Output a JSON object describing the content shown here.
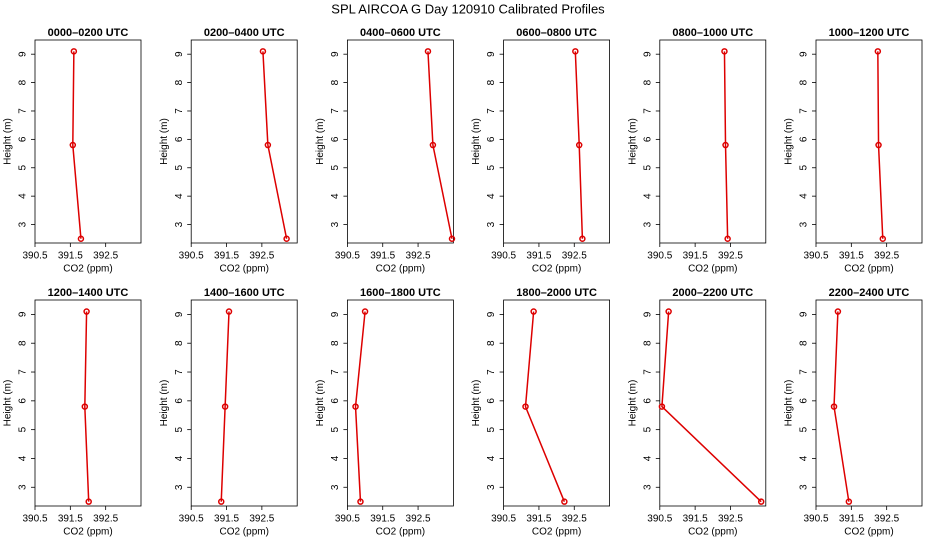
{
  "title": "SPL AIRCOA G  Day 120910  Calibrated Profiles",
  "chart_data": [
    {
      "type": "line",
      "title": "0000–0200 UTC",
      "xlabel": "CO2 (ppm)",
      "ylabel": "Height (m)",
      "color": "#dd0000",
      "x": [
        391.6,
        391.57,
        391.8
      ],
      "values": [
        9.1,
        5.8,
        2.5
      ],
      "xlim": [
        390.5,
        393.5
      ],
      "xticks": [
        390.5,
        391.5,
        392.5
      ],
      "ylim": [
        2.35,
        9.5
      ],
      "yticks": [
        3,
        4,
        5,
        6,
        7,
        8,
        9
      ]
    },
    {
      "type": "line",
      "title": "0200–0400 UTC",
      "xlabel": "CO2 (ppm)",
      "ylabel": "Height (m)",
      "color": "#dd0000",
      "x": [
        392.53,
        392.67,
        393.2
      ],
      "values": [
        9.1,
        5.8,
        2.5
      ],
      "xlim": [
        390.5,
        393.5
      ],
      "xticks": [
        390.5,
        391.5,
        392.5
      ],
      "ylim": [
        2.35,
        9.5
      ],
      "yticks": [
        3,
        4,
        5,
        6,
        7,
        8,
        9
      ]
    },
    {
      "type": "line",
      "title": "0400–0600 UTC",
      "xlabel": "CO2 (ppm)",
      "ylabel": "Height (m)",
      "color": "#dd0000",
      "x": [
        392.78,
        392.92,
        393.46
      ],
      "values": [
        9.1,
        5.8,
        2.5
      ],
      "xlim": [
        390.5,
        393.5
      ],
      "xticks": [
        390.5,
        391.5,
        392.5
      ],
      "ylim": [
        2.35,
        9.5
      ],
      "yticks": [
        3,
        4,
        5,
        6,
        7,
        8,
        9
      ]
    },
    {
      "type": "line",
      "title": "0600–0800 UTC",
      "xlabel": "CO2 (ppm)",
      "ylabel": "Height (m)",
      "color": "#dd0000",
      "x": [
        392.53,
        392.64,
        392.73
      ],
      "values": [
        9.1,
        5.8,
        2.5
      ],
      "xlim": [
        390.5,
        393.5
      ],
      "xticks": [
        390.5,
        391.5,
        392.5
      ],
      "ylim": [
        2.35,
        9.5
      ],
      "yticks": [
        3,
        4,
        5,
        6,
        7,
        8,
        9
      ]
    },
    {
      "type": "line",
      "title": "0800–1000 UTC",
      "xlabel": "CO2 (ppm)",
      "ylabel": "Height (m)",
      "color": "#dd0000",
      "x": [
        392.33,
        392.36,
        392.42
      ],
      "values": [
        9.1,
        5.8,
        2.5
      ],
      "xlim": [
        390.5,
        393.5
      ],
      "xticks": [
        390.5,
        391.5,
        392.5
      ],
      "ylim": [
        2.35,
        9.5
      ],
      "yticks": [
        3,
        4,
        5,
        6,
        7,
        8,
        9
      ]
    },
    {
      "type": "line",
      "title": "1000–1200 UTC",
      "xlabel": "CO2 (ppm)",
      "ylabel": "Height (m)",
      "color": "#dd0000",
      "x": [
        392.25,
        392.27,
        392.39
      ],
      "values": [
        9.1,
        5.8,
        2.5
      ],
      "xlim": [
        390.5,
        393.5
      ],
      "xticks": [
        390.5,
        391.5,
        392.5
      ],
      "ylim": [
        2.35,
        9.5
      ],
      "yticks": [
        3,
        4,
        5,
        6,
        7,
        8,
        9
      ]
    },
    {
      "type": "line",
      "title": "1200–1400 UTC",
      "xlabel": "CO2 (ppm)",
      "ylabel": "Height (m)",
      "color": "#dd0000",
      "x": [
        391.96,
        391.91,
        392.02
      ],
      "values": [
        9.1,
        5.8,
        2.5
      ],
      "xlim": [
        390.5,
        393.5
      ],
      "xticks": [
        390.5,
        391.5,
        392.5
      ],
      "ylim": [
        2.35,
        9.5
      ],
      "yticks": [
        3,
        4,
        5,
        6,
        7,
        8,
        9
      ]
    },
    {
      "type": "line",
      "title": "1400–1600 UTC",
      "xlabel": "CO2 (ppm)",
      "ylabel": "Height (m)",
      "color": "#dd0000",
      "x": [
        391.57,
        391.46,
        391.35
      ],
      "values": [
        9.1,
        5.8,
        2.5
      ],
      "xlim": [
        390.5,
        393.5
      ],
      "xticks": [
        390.5,
        391.5,
        392.5
      ],
      "ylim": [
        2.35,
        9.5
      ],
      "yticks": [
        3,
        4,
        5,
        6,
        7,
        8,
        9
      ]
    },
    {
      "type": "line",
      "title": "1600–1800 UTC",
      "xlabel": "CO2 (ppm)",
      "ylabel": "Height (m)",
      "color": "#dd0000",
      "x": [
        391.0,
        390.73,
        390.87
      ],
      "values": [
        9.1,
        5.8,
        2.5
      ],
      "xlim": [
        390.5,
        393.5
      ],
      "xticks": [
        390.5,
        391.5,
        392.5
      ],
      "ylim": [
        2.35,
        9.5
      ],
      "yticks": [
        3,
        4,
        5,
        6,
        7,
        8,
        9
      ]
    },
    {
      "type": "line",
      "title": "1800–2000 UTC",
      "xlabel": "CO2 (ppm)",
      "ylabel": "Height (m)",
      "color": "#dd0000",
      "x": [
        391.35,
        391.12,
        392.22
      ],
      "values": [
        9.1,
        5.8,
        2.5
      ],
      "xlim": [
        390.5,
        393.5
      ],
      "xticks": [
        390.5,
        391.5,
        392.5
      ],
      "ylim": [
        2.35,
        9.5
      ],
      "yticks": [
        3,
        4,
        5,
        6,
        7,
        8,
        9
      ]
    },
    {
      "type": "line",
      "title": "2000–2200 UTC",
      "xlabel": "CO2 (ppm)",
      "ylabel": "Height (m)",
      "color": "#dd0000",
      "x": [
        390.75,
        390.56,
        393.37
      ],
      "values": [
        9.1,
        5.8,
        2.5
      ],
      "xlim": [
        390.5,
        393.5
      ],
      "xticks": [
        390.5,
        391.5,
        392.5
      ],
      "ylim": [
        2.35,
        9.5
      ],
      "yticks": [
        3,
        4,
        5,
        6,
        7,
        8,
        9
      ]
    },
    {
      "type": "line",
      "title": "2200–2400 UTC",
      "xlabel": "CO2 (ppm)",
      "ylabel": "Height (m)",
      "color": "#dd0000",
      "x": [
        391.12,
        391.01,
        391.43
      ],
      "values": [
        9.1,
        5.8,
        2.5
      ],
      "xlim": [
        390.5,
        393.5
      ],
      "xticks": [
        390.5,
        391.5,
        392.5
      ],
      "ylim": [
        2.35,
        9.5
      ],
      "yticks": [
        3,
        4,
        5,
        6,
        7,
        8,
        9
      ]
    }
  ]
}
